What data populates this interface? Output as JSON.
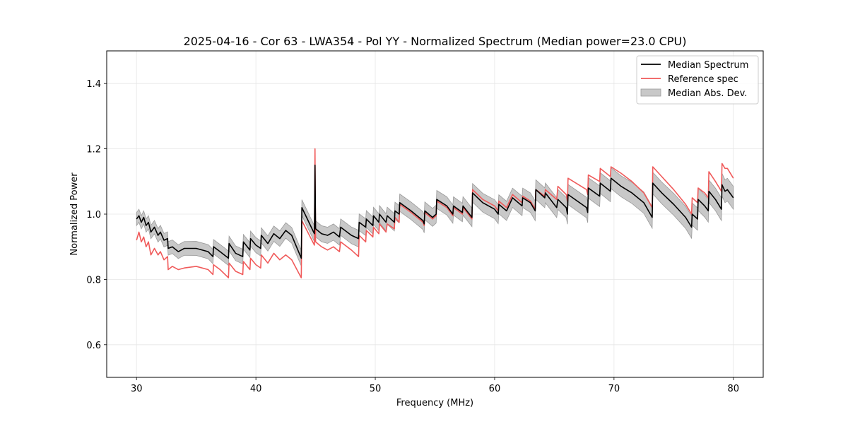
{
  "chart_data": {
    "type": "line",
    "title": "2025-04-16 - Cor 63 - LWA354 - Pol YY - Normalized Spectrum (Median power=23.0 CPU)",
    "xlabel": "Frequency (MHz)",
    "ylabel": "Normalized Power",
    "xlim": [
      27.5,
      82.5
    ],
    "ylim": [
      0.5,
      1.5
    ],
    "xticks": [
      30,
      40,
      50,
      60,
      70,
      80
    ],
    "xtick_labels": [
      "30",
      "40",
      "50",
      "60",
      "70",
      "80"
    ],
    "yticks": [
      0.6,
      0.8,
      1.0,
      1.2,
      1.4
    ],
    "ytick_labels": [
      "0.6",
      "0.8",
      "1.0",
      "1.2",
      "1.4"
    ],
    "grid": true,
    "legend_position": "top-right",
    "legend": [
      {
        "label": "Median Spectrum",
        "kind": "line",
        "color": "#000000"
      },
      {
        "label": "Reference spec",
        "kind": "line",
        "color": "#f05a5a"
      },
      {
        "label": "Median Abs. Dev.",
        "kind": "band",
        "color": "#c8c8c8"
      }
    ],
    "series": [
      {
        "name": "Median Spectrum",
        "color": "#000000",
        "x": [
          30.0,
          30.2,
          30.4,
          30.6,
          30.8,
          31.0,
          31.2,
          31.5,
          31.8,
          32.0,
          32.3,
          32.6,
          32.65,
          33.0,
          33.5,
          34.0,
          35.0,
          36.0,
          36.4,
          36.45,
          37.0,
          37.7,
          37.75,
          38.3,
          38.9,
          38.95,
          39.5,
          39.55,
          40.0,
          40.4,
          40.45,
          41.0,
          41.5,
          42.0,
          42.5,
          43.0,
          43.8,
          43.85,
          44.9,
          44.95,
          45.0,
          45.5,
          46.0,
          46.5,
          47.0,
          47.1,
          48.0,
          48.6,
          48.65,
          49.2,
          49.25,
          49.8,
          49.85,
          50.3,
          50.35,
          50.9,
          51.0,
          51.6,
          51.65,
          52.0,
          52.05,
          53.0,
          54.0,
          54.1,
          54.15,
          54.8,
          55.1,
          55.15,
          56.0,
          56.5,
          56.55,
          57.3,
          57.35,
          58.1,
          58.15,
          59.0,
          60.0,
          60.3,
          60.35,
          61.0,
          61.5,
          62.3,
          62.35,
          63.0,
          63.4,
          63.45,
          64.2,
          64.25,
          65.2,
          65.3,
          66.0,
          66.1,
          66.15,
          67.7,
          67.8,
          67.85,
          68.8,
          68.85,
          69.7,
          69.75,
          70.6,
          71.5,
          72.5,
          73.2,
          73.25,
          74.0,
          75.0,
          76.0,
          76.5,
          76.55,
          77.0,
          77.05,
          77.6,
          77.9,
          77.95,
          78.5,
          79.0,
          79.05,
          79.3,
          79.5,
          80.0
        ],
        "values": [
          0.985,
          0.995,
          0.975,
          0.99,
          0.965,
          0.975,
          0.945,
          0.96,
          0.935,
          0.945,
          0.92,
          0.925,
          0.895,
          0.9,
          0.885,
          0.895,
          0.895,
          0.885,
          0.87,
          0.9,
          0.885,
          0.865,
          0.91,
          0.88,
          0.87,
          0.915,
          0.89,
          0.925,
          0.905,
          0.895,
          0.935,
          0.91,
          0.94,
          0.925,
          0.95,
          0.935,
          0.865,
          1.02,
          0.94,
          1.15,
          0.955,
          0.94,
          0.935,
          0.945,
          0.93,
          0.96,
          0.935,
          0.925,
          0.975,
          0.96,
          0.985,
          0.965,
          0.995,
          0.975,
          1.0,
          0.975,
          0.995,
          0.975,
          1.01,
          1.0,
          1.035,
          1.01,
          0.98,
          0.97,
          1.01,
          0.99,
          1.0,
          1.045,
          1.025,
          1.0,
          1.025,
          1.005,
          1.025,
          0.99,
          1.065,
          1.035,
          1.015,
          1.0,
          1.03,
          1.01,
          1.05,
          1.025,
          1.05,
          1.035,
          1.01,
          1.075,
          1.05,
          1.065,
          1.02,
          1.045,
          1.02,
          1.0,
          1.06,
          1.02,
          1.005,
          1.08,
          1.055,
          1.095,
          1.07,
          1.11,
          1.085,
          1.065,
          1.035,
          0.99,
          1.095,
          1.065,
          1.03,
          0.99,
          0.96,
          1.0,
          0.985,
          1.045,
          1.025,
          1.01,
          1.07,
          1.045,
          1.015,
          1.09,
          1.07,
          1.075,
          1.05
        ]
      },
      {
        "name": "Reference spec",
        "color": "#f05a5a",
        "x": [
          30.0,
          30.2,
          30.4,
          30.6,
          30.8,
          31.0,
          31.2,
          31.5,
          31.8,
          32.0,
          32.3,
          32.6,
          32.65,
          33.0,
          33.5,
          34.0,
          35.0,
          36.0,
          36.4,
          36.45,
          37.0,
          37.7,
          37.75,
          38.3,
          38.9,
          38.95,
          39.5,
          39.55,
          40.0,
          40.4,
          40.45,
          41.0,
          41.5,
          42.0,
          42.5,
          43.0,
          43.8,
          43.85,
          44.9,
          44.95,
          45.0,
          45.5,
          46.0,
          46.5,
          47.0,
          47.1,
          48.0,
          48.6,
          48.65,
          49.2,
          49.25,
          49.8,
          49.85,
          50.3,
          50.35,
          50.9,
          51.0,
          51.6,
          51.65,
          52.0,
          52.05,
          53.0,
          54.0,
          54.1,
          54.15,
          54.8,
          55.1,
          55.15,
          56.0,
          56.5,
          56.55,
          57.3,
          57.35,
          58.1,
          58.15,
          59.0,
          60.0,
          60.3,
          60.35,
          61.0,
          61.5,
          62.3,
          62.35,
          63.0,
          63.4,
          63.45,
          64.2,
          64.25,
          65.2,
          65.3,
          66.0,
          66.1,
          66.15,
          67.7,
          67.8,
          67.85,
          68.8,
          68.85,
          69.7,
          69.75,
          70.6,
          71.5,
          72.5,
          73.2,
          73.25,
          74.0,
          75.0,
          76.0,
          76.5,
          76.55,
          77.0,
          77.05,
          77.6,
          77.9,
          77.95,
          78.5,
          79.0,
          79.05,
          79.3,
          79.5,
          80.0
        ],
        "values": [
          0.92,
          0.945,
          0.915,
          0.93,
          0.9,
          0.915,
          0.875,
          0.895,
          0.875,
          0.885,
          0.86,
          0.87,
          0.83,
          0.84,
          0.83,
          0.835,
          0.84,
          0.83,
          0.815,
          0.845,
          0.83,
          0.805,
          0.85,
          0.825,
          0.815,
          0.855,
          0.83,
          0.865,
          0.845,
          0.835,
          0.875,
          0.85,
          0.88,
          0.86,
          0.875,
          0.86,
          0.805,
          0.98,
          0.905,
          1.2,
          0.915,
          0.9,
          0.89,
          0.9,
          0.885,
          0.915,
          0.89,
          0.87,
          0.935,
          0.915,
          0.95,
          0.93,
          0.96,
          0.94,
          0.97,
          0.945,
          0.97,
          0.955,
          0.99,
          0.975,
          1.03,
          1.005,
          0.975,
          0.965,
          1.005,
          0.985,
          0.995,
          1.04,
          1.02,
          0.995,
          1.02,
          1.0,
          1.02,
          0.985,
          1.075,
          1.045,
          1.025,
          1.01,
          1.04,
          1.02,
          1.06,
          1.035,
          1.055,
          1.04,
          1.015,
          1.075,
          1.055,
          1.075,
          1.045,
          1.085,
          1.06,
          1.04,
          1.11,
          1.075,
          1.06,
          1.12,
          1.1,
          1.14,
          1.115,
          1.145,
          1.125,
          1.1,
          1.065,
          1.02,
          1.145,
          1.115,
          1.075,
          1.03,
          1.0,
          1.05,
          1.035,
          1.08,
          1.065,
          1.05,
          1.13,
          1.1,
          1.07,
          1.155,
          1.14,
          1.14,
          1.11
        ]
      }
    ],
    "band": {
      "name": "Median Abs. Dev.",
      "color": "#c8c8c8",
      "center_series": "Median Spectrum",
      "half_width_start": 0.02,
      "half_width_end": 0.035
    }
  }
}
